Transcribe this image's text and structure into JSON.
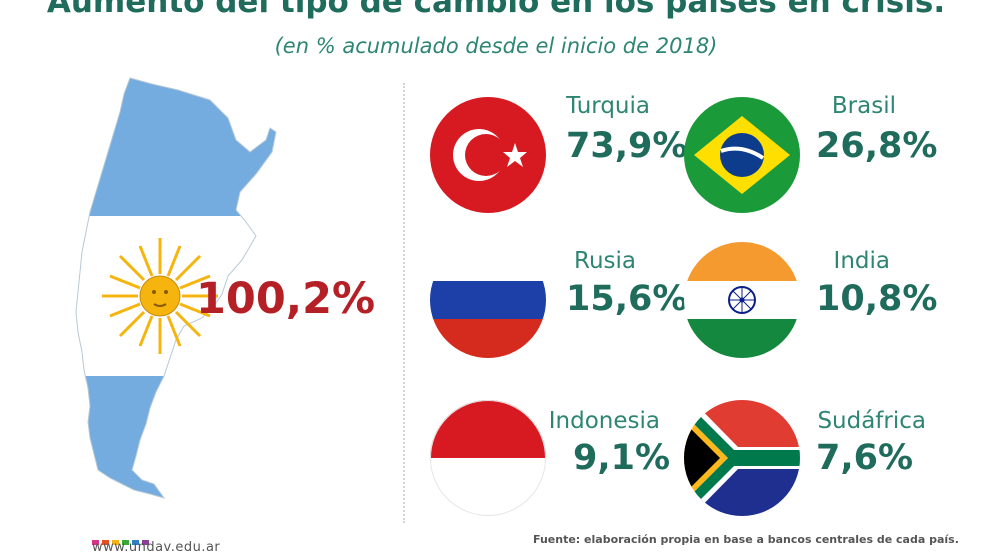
{
  "header": {
    "title": "Aumento del tipo de cambio en los países en crisis.",
    "subtitle": "(en % acumulado desde el inicio de 2018)"
  },
  "argentina": {
    "value": "100,2%",
    "colors": {
      "light_blue": "#74acdf",
      "sun": "#f6b40e"
    }
  },
  "countries": [
    {
      "name": "Turquia",
      "value": "73,9%",
      "flag_icon": "turkey-flag-icon"
    },
    {
      "name": "Brasil",
      "value": "26,8%",
      "flag_icon": "brazil-flag-icon"
    },
    {
      "name": "Rusia",
      "value": "15,6%",
      "flag_icon": "russia-flag-icon"
    },
    {
      "name": "India",
      "value": "10,8%",
      "flag_icon": "india-flag-icon"
    },
    {
      "name": "Indonesia",
      "value": "9,1%",
      "flag_icon": "indonesia-flag-icon"
    },
    {
      "name": "Sudáfrica",
      "value": "7,6%",
      "flag_icon": "south-africa-flag-icon"
    }
  ],
  "footer": {
    "url": "www.undav.edu.ar",
    "source": "Fuente: elaboración propia en base a bancos centrales de cada país.",
    "dot_colors": [
      "#d9348a",
      "#e94e1b",
      "#f6b40e",
      "#3aaa35",
      "#2f7fc1",
      "#8a3f98"
    ]
  },
  "colors": {
    "title": "#1f6b5c",
    "subtitle": "#2e8574",
    "argentina_value": "#b42026"
  }
}
